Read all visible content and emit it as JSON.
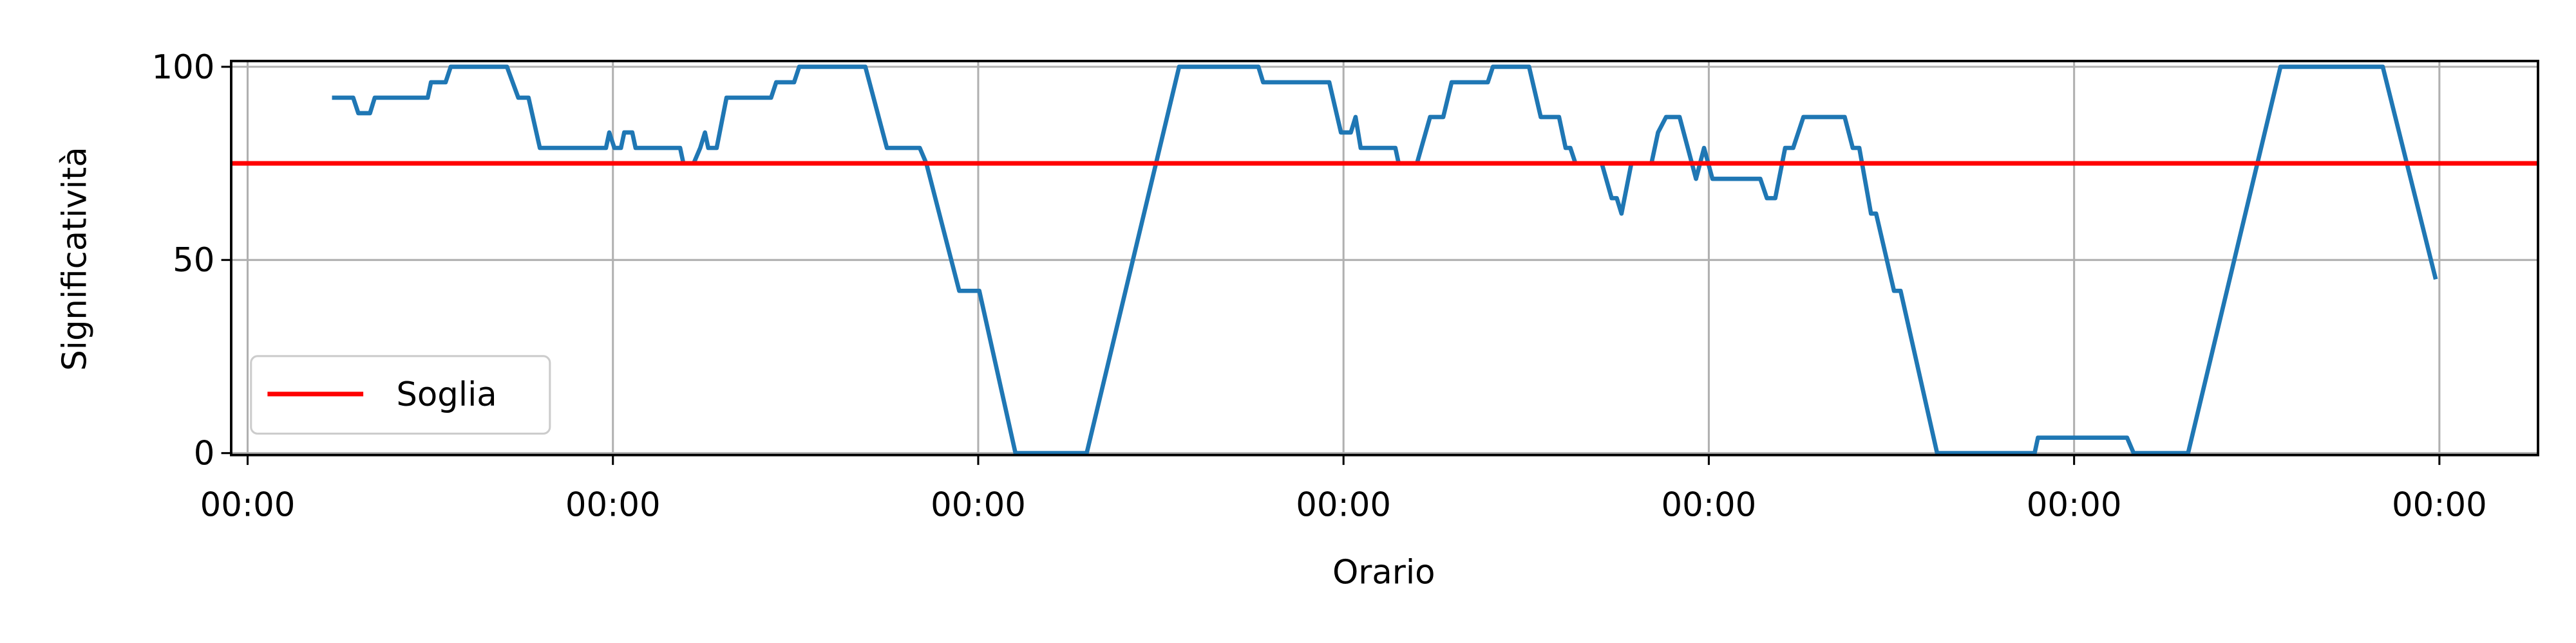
{
  "chart_data": {
    "type": "line",
    "xlabel": "Orario",
    "ylabel": "Significatività",
    "xlim": [
      -0.045,
      6.27
    ],
    "ylim": [
      -0.5,
      101.5
    ],
    "xticks": [
      {
        "value": 0,
        "label": "00:00"
      },
      {
        "value": 1,
        "label": "00:00"
      },
      {
        "value": 2,
        "label": "00:00"
      },
      {
        "value": 3,
        "label": "00:00"
      },
      {
        "value": 4,
        "label": "00:00"
      },
      {
        "value": 5,
        "label": "00:00"
      },
      {
        "value": 6,
        "label": "00:00"
      }
    ],
    "yticks": [
      0,
      50,
      100
    ],
    "grid": true,
    "legend": "lower left",
    "series": [
      {
        "color": "#1f77b4",
        "x": [
          0.231,
          0.289,
          0.303,
          0.335,
          0.348,
          0.493,
          0.502,
          0.542,
          0.556,
          0.71,
          0.741,
          0.769,
          0.8,
          0.981,
          0.99,
          1.004,
          1.022,
          1.031,
          1.053,
          1.062,
          1.184,
          1.193,
          1.221,
          1.239,
          1.252,
          1.261,
          1.284,
          1.311,
          1.433,
          1.447,
          1.496,
          1.51,
          1.691,
          1.75,
          1.84,
          1.858,
          1.948,
          2.003,
          2.102,
          2.297,
          2.55,
          2.767,
          2.78,
          2.961,
          2.993,
          3.02,
          3.033,
          3.047,
          3.142,
          3.151,
          3.201,
          3.237,
          3.273,
          3.296,
          3.395,
          3.409,
          3.508,
          3.54,
          3.59,
          3.608,
          3.621,
          3.635,
          3.707,
          3.734,
          3.748,
          3.761,
          3.788,
          3.843,
          3.861,
          3.883,
          3.92,
          3.965,
          3.987,
          4.01,
          4.141,
          4.159,
          4.182,
          4.209,
          4.231,
          4.259,
          4.372,
          4.394,
          4.412,
          4.444,
          4.458,
          4.507,
          4.525,
          4.625,
          4.892,
          4.901,
          5.145,
          5.163,
          5.312,
          5.565,
          5.845,
          5.99
        ],
        "values": [
          92,
          92,
          88,
          88,
          92,
          92,
          96,
          96,
          100,
          100,
          92,
          92,
          79,
          79,
          83,
          79,
          79,
          83,
          83,
          79,
          79,
          75,
          75,
          79,
          83,
          79,
          79,
          92,
          92,
          96,
          96,
          100,
          100,
          79,
          79,
          75,
          42,
          42,
          0,
          0,
          100,
          100,
          96,
          96,
          83,
          83,
          87,
          79,
          79,
          75,
          75,
          87,
          87,
          96,
          96,
          100,
          100,
          87,
          87,
          79,
          79,
          75,
          75,
          66,
          66,
          62,
          75,
          75,
          83,
          87,
          87,
          71,
          79,
          71,
          71,
          66,
          66,
          79,
          79,
          87,
          87,
          79,
          79,
          62,
          62,
          42,
          42,
          0,
          0,
          4,
          4,
          0,
          0,
          100,
          100,
          45
        ]
      }
    ],
    "hline": {
      "name": "Soglia",
      "value": 75,
      "color": "#ff0000"
    }
  }
}
